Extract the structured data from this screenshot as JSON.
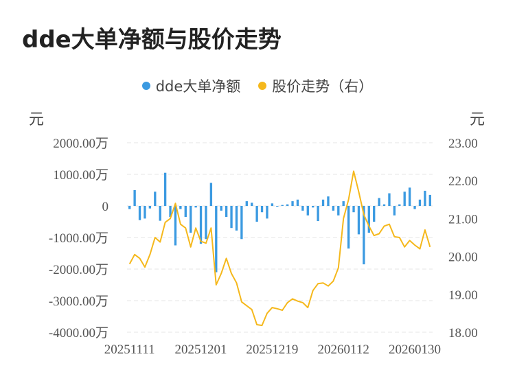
{
  "title": "dde大单净额与股价走势",
  "legend": {
    "bar_label": "dde大单净额",
    "line_label": "股价走势（右）"
  },
  "units": {
    "left": "元",
    "right": "元"
  },
  "colors": {
    "bar": "#3b9ae1",
    "line": "#f5b81c",
    "grid": "#e6e6e6"
  },
  "chart_data": {
    "type": "bar+line",
    "title": "dde大单净额与股价走势",
    "left_axis": {
      "unit": "元",
      "range": [
        -4000,
        2000
      ],
      "ticks": [
        {
          "value": 2000,
          "label": "2000.00万"
        },
        {
          "value": 1000,
          "label": "1000.00万"
        },
        {
          "value": 0,
          "label": "0"
        },
        {
          "value": -1000,
          "label": "-1000.00万"
        },
        {
          "value": -2000,
          "label": "-2000.00万"
        },
        {
          "value": -3000,
          "label": "-3000.00万"
        },
        {
          "value": -4000,
          "label": "-4000.00万"
        }
      ]
    },
    "right_axis": {
      "unit": "元",
      "range": [
        18,
        23
      ],
      "ticks": [
        {
          "value": 23,
          "label": "23.00"
        },
        {
          "value": 22,
          "label": "22.00"
        },
        {
          "value": 21,
          "label": "21.00"
        },
        {
          "value": 20,
          "label": "20.00"
        },
        {
          "value": 19,
          "label": "19.00"
        },
        {
          "value": 18,
          "label": "18.00"
        }
      ]
    },
    "x_ticks": [
      {
        "index": 0,
        "label": "20251111"
      },
      {
        "index": 14,
        "label": "20251201"
      },
      {
        "index": 28,
        "label": "20251219"
      },
      {
        "index": 42,
        "label": "20260112"
      },
      {
        "index": 56,
        "label": "20260130"
      }
    ],
    "series": [
      {
        "name": "dde大单净额",
        "type": "bar",
        "axis": "left",
        "values": [
          -100,
          500,
          -450,
          -400,
          -80,
          450,
          -470,
          1050,
          -350,
          -1250,
          -100,
          -350,
          -850,
          -50,
          -1200,
          -1050,
          730,
          -2100,
          -150,
          -350,
          -700,
          -780,
          -1050,
          150,
          100,
          -500,
          -200,
          -400,
          80,
          0,
          30,
          50,
          150,
          200,
          -150,
          -300,
          -50,
          -480,
          200,
          300,
          -150,
          -300,
          150,
          -1350,
          -200,
          -900,
          -1850,
          -850,
          -500,
          250,
          50,
          400,
          -300,
          50,
          450,
          580,
          -100,
          200,
          480,
          350
        ]
      },
      {
        "name": "股价走势（右）",
        "type": "line",
        "axis": "right",
        "values": [
          19.8,
          20.05,
          19.95,
          19.72,
          20.05,
          20.5,
          20.38,
          20.9,
          21.0,
          21.4,
          20.85,
          20.75,
          20.25,
          20.75,
          20.4,
          20.35,
          20.75,
          19.25,
          19.55,
          19.95,
          19.55,
          19.3,
          18.8,
          18.7,
          18.6,
          18.2,
          18.18,
          18.5,
          18.65,
          18.62,
          18.58,
          18.78,
          18.88,
          18.82,
          18.78,
          18.65,
          19.1,
          19.28,
          19.3,
          19.22,
          19.35,
          19.7,
          21.0,
          21.5,
          22.25,
          21.7,
          21.1,
          20.8,
          20.55,
          20.6,
          20.8,
          20.85,
          20.52,
          20.5,
          20.25,
          20.42,
          20.3,
          20.2,
          20.7,
          20.25
        ]
      }
    ],
    "grid": true,
    "legend_position": "top-center"
  }
}
